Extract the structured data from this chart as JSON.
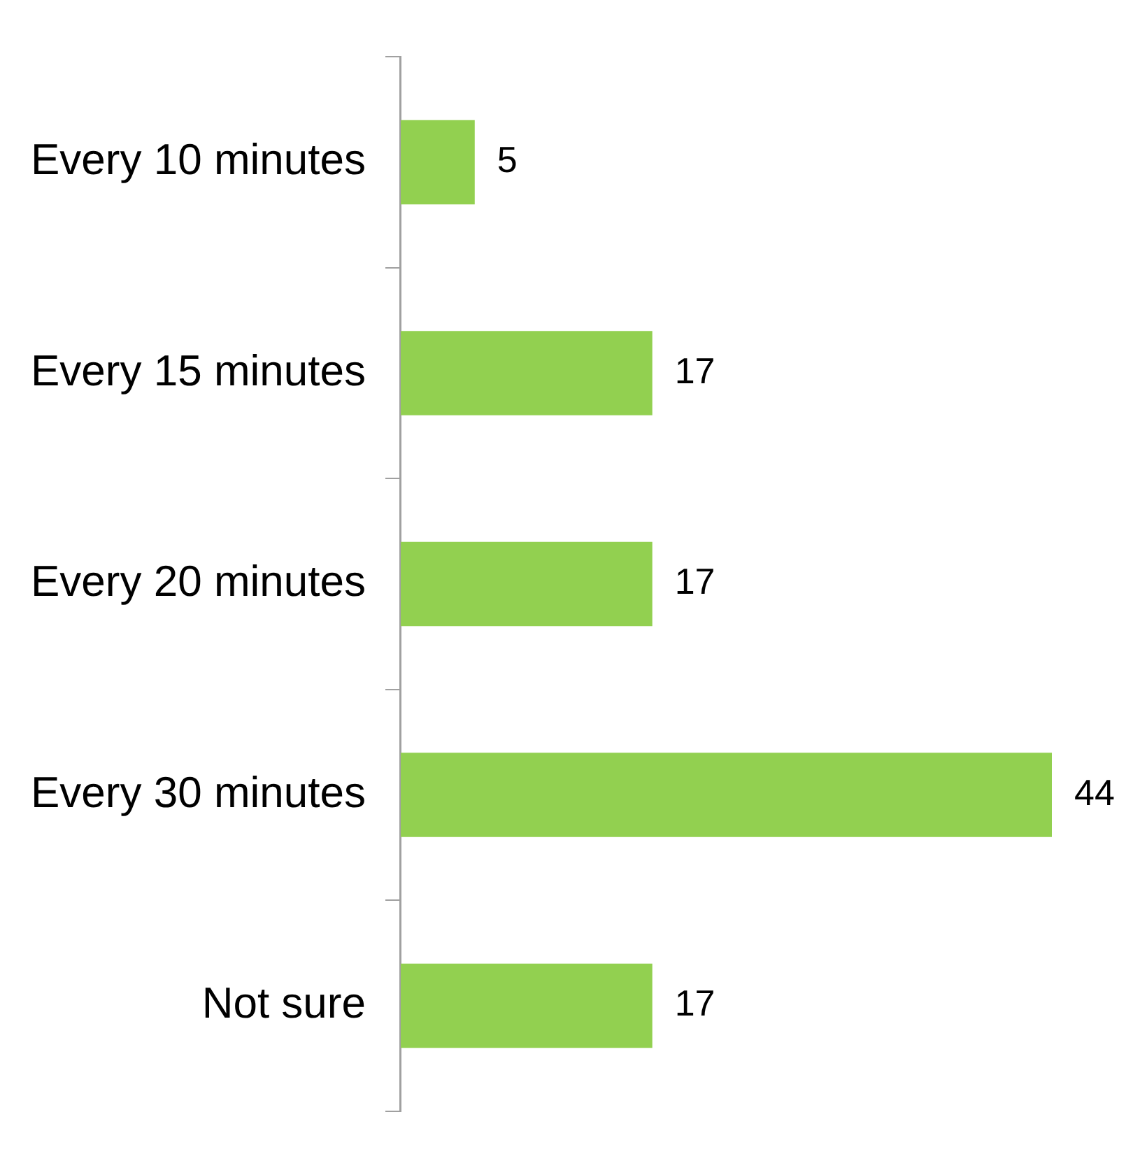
{
  "chart_data": {
    "type": "bar",
    "orientation": "horizontal",
    "categories": [
      "Every 10 minutes",
      "Every 15 minutes",
      "Every 20 minutes",
      "Every 30 minutes",
      "Not sure"
    ],
    "values": [
      5,
      17,
      17,
      44,
      17
    ],
    "color": "#92d050",
    "data_labels": true,
    "xlim": [
      0,
      44
    ],
    "tick_labels": "y",
    "grid": false,
    "legend": false
  }
}
